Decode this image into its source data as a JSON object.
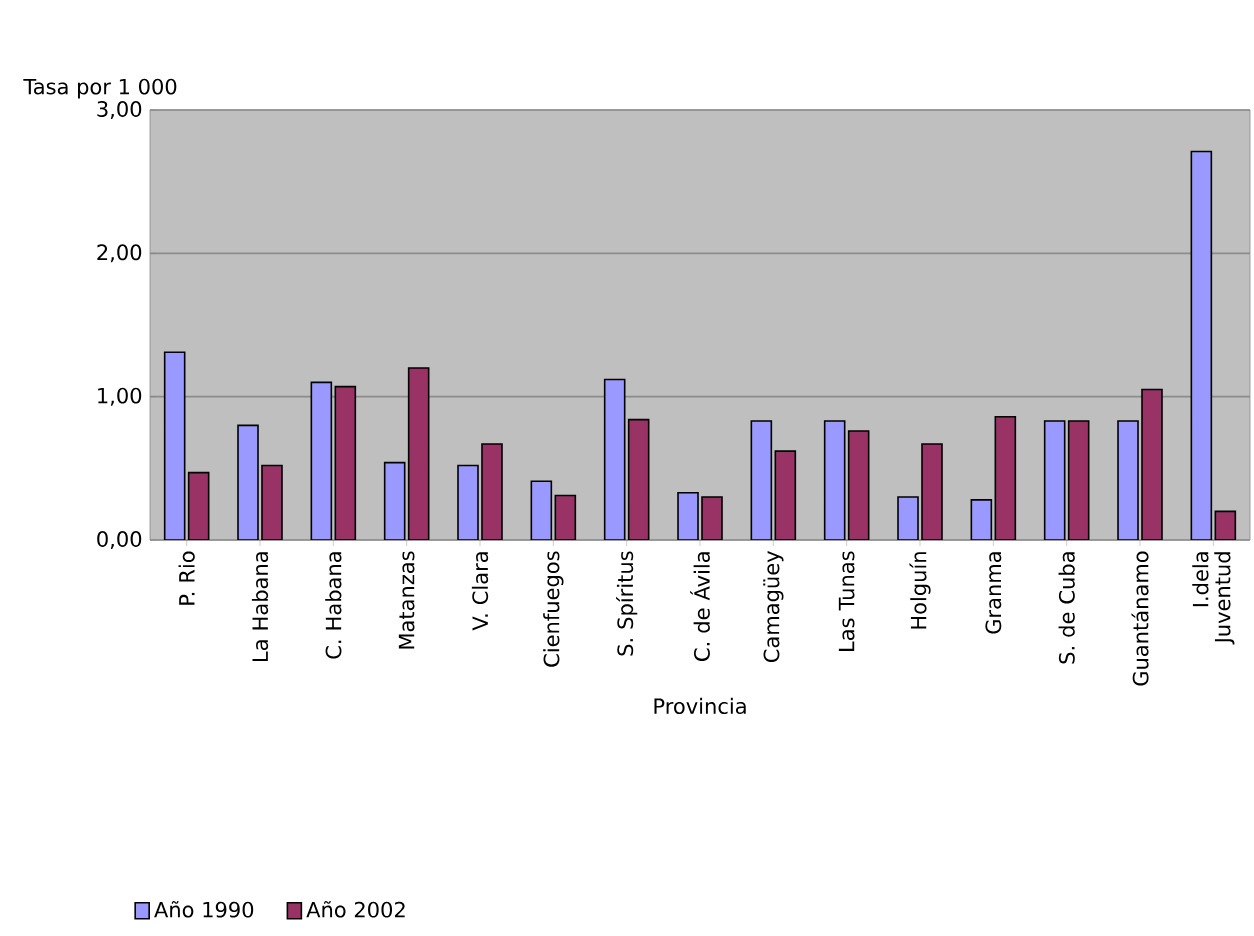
{
  "chart_data": {
    "type": "bar",
    "ylabel": "Tasa por 1 000",
    "xlabel": "Provincia",
    "categories": [
      "P. Rio",
      "La Habana",
      "C. Habana",
      "Matanzas",
      "V. Clara",
      "Cienfuegos",
      "S. Spíritus",
      "C. de Ávila",
      "Camagüey",
      "Las Tunas",
      "Holguín",
      "Granma",
      "S. de Cuba",
      "Guantánamo",
      "I.dela Juventud"
    ],
    "series": [
      {
        "name": "Año 1990",
        "color": "#9999ff",
        "values": [
          1.31,
          0.8,
          1.1,
          0.54,
          0.52,
          0.41,
          1.12,
          0.33,
          0.83,
          0.83,
          0.3,
          0.28,
          0.83,
          0.83,
          2.71
        ]
      },
      {
        "name": "Año 2002",
        "color": "#993366",
        "values": [
          0.47,
          0.52,
          1.07,
          1.2,
          0.67,
          0.31,
          0.84,
          0.3,
          0.62,
          0.76,
          0.67,
          0.86,
          0.83,
          1.05,
          0.2
        ]
      }
    ],
    "ylim": [
      0,
      3
    ],
    "yticks": [
      {
        "value": 0,
        "label": "0,00"
      },
      {
        "value": 1,
        "label": "1,00"
      },
      {
        "value": 2,
        "label": "2,00"
      },
      {
        "value": 3,
        "label": "3,00"
      }
    ],
    "grid": "y",
    "legend": "bottom"
  }
}
